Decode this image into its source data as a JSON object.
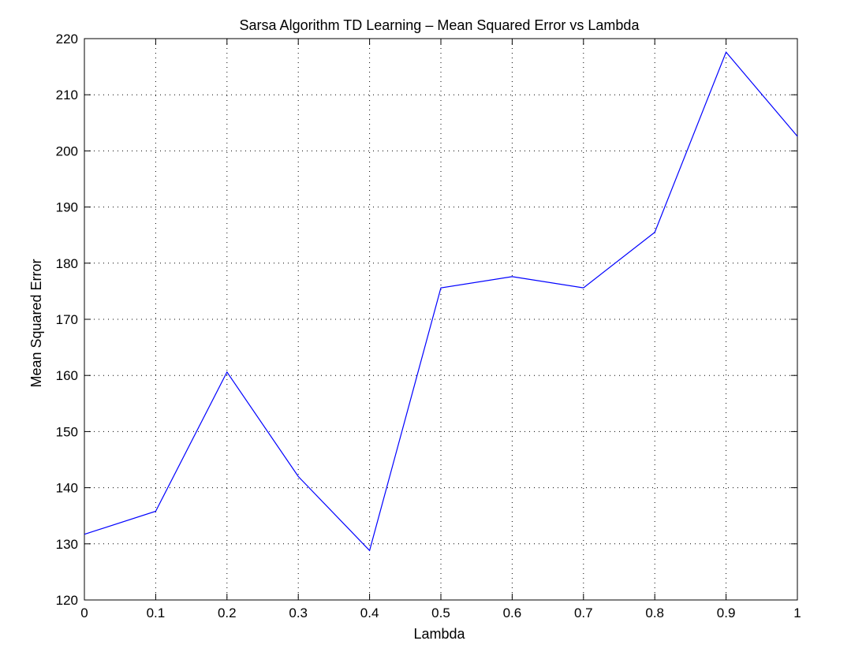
{
  "chart_data": {
    "type": "line",
    "title": "Sarsa Algorithm TD Learning – Mean Squared Error vs Lambda",
    "xlabel": "Lambda",
    "ylabel": "Mean Squared Error",
    "xlim": [
      0,
      1
    ],
    "ylim": [
      120,
      220
    ],
    "xticks": [
      0,
      0.1,
      0.2,
      0.3,
      0.4,
      0.5,
      0.6,
      0.7,
      0.8,
      0.9,
      1
    ],
    "xtick_labels": [
      "0",
      "0.1",
      "0.2",
      "0.3",
      "0.4",
      "0.5",
      "0.6",
      "0.7",
      "0.8",
      "0.9",
      "1"
    ],
    "yticks": [
      120,
      130,
      140,
      150,
      160,
      170,
      180,
      190,
      200,
      210,
      220
    ],
    "ytick_labels": [
      "120",
      "130",
      "140",
      "150",
      "160",
      "170",
      "180",
      "190",
      "200",
      "210",
      "220"
    ],
    "grid": true,
    "series": [
      {
        "color": "#0000ff",
        "x": [
          0,
          0.1,
          0.2,
          0.3,
          0.4,
          0.5,
          0.6,
          0.7,
          0.8,
          0.9,
          1
        ],
        "y": [
          131.7,
          135.8,
          160.6,
          142.0,
          128.8,
          175.6,
          177.6,
          175.6,
          185.5,
          217.6,
          202.6
        ]
      }
    ]
  }
}
